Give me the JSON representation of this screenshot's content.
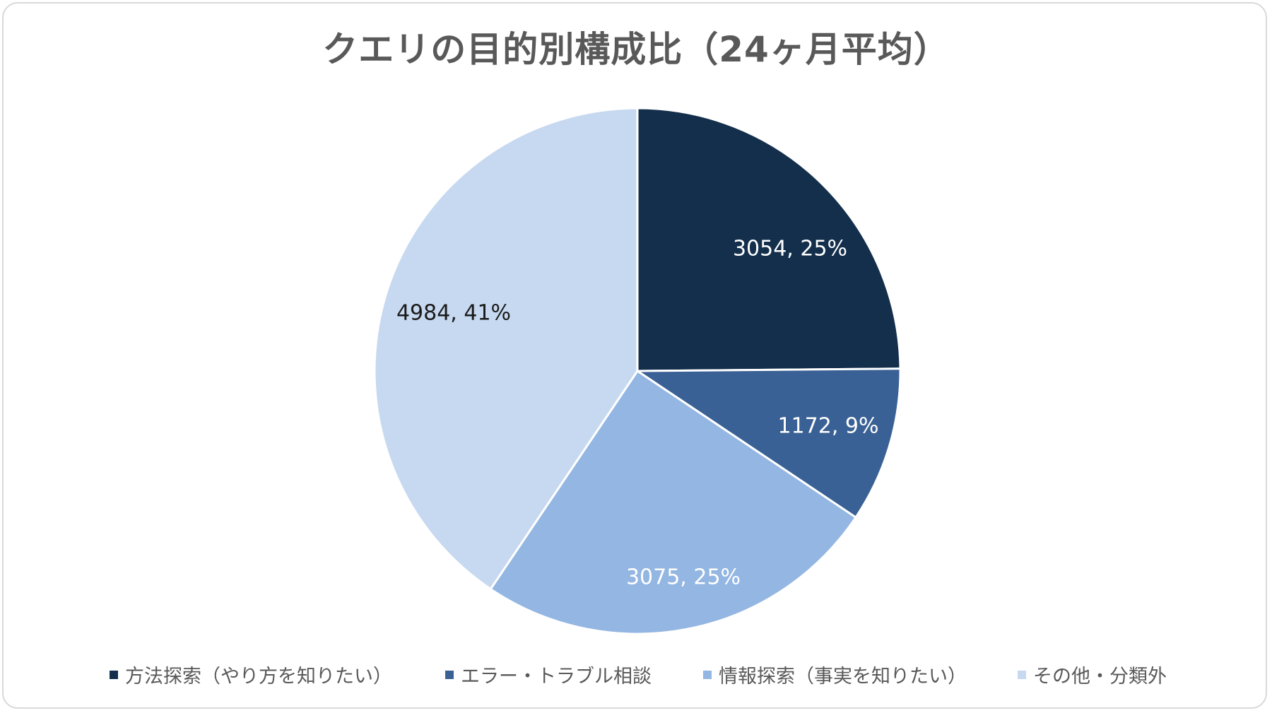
{
  "chart_data": {
    "type": "pie",
    "title": "クエリの目的別構成比（24ヶ月平均）",
    "start_angle": "12 o'clock, clockwise",
    "slices": [
      {
        "name": "方法探索（やり方を知りたい）",
        "value": 3054,
        "percent": "25%",
        "label": "3054, 25%",
        "color": "#132f4c",
        "label_color": "#ffffff"
      },
      {
        "name": "エラー・トラブル相談",
        "value": 1172,
        "percent": "9%",
        "label": "1172, 9%",
        "color": "#3a6195",
        "label_color": "#ffffff"
      },
      {
        "name": "情報探索（事実を知りたい）",
        "value": 3075,
        "percent": "25%",
        "label": "3075, 25%",
        "color": "#93b6e2",
        "label_color": "#ffffff"
      },
      {
        "name": "その他・分類外",
        "value": 4984,
        "percent": "41%",
        "label": "4984, 41%",
        "color": "#c7d9f0",
        "label_color": "#1a1a1a"
      }
    ],
    "legend": {
      "position": "bottom"
    }
  }
}
